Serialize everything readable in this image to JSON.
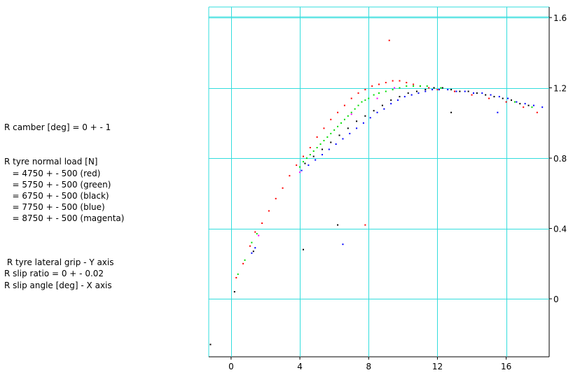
{
  "legend": {
    "camber": "R camber [deg] = 0 + - 1",
    "load_title": "R tyre normal load [N]",
    "load_lines": [
      "   = 4750 + - 500 (red)",
      "   = 5750 + - 500 (green)",
      "   = 6750 + - 500 (black)",
      "   = 7750 + - 500 (blue)",
      "   = 8750 + - 500 (magenta)"
    ],
    "y_axis": " R tyre lateral grip - Y axis",
    "slip_ratio": "R slip ratio = 0 + - 0.02",
    "x_axis": "R slip angle [deg] - X axis"
  },
  "chart_data": {
    "type": "scatter",
    "xlim": [
      -1.3,
      18.5
    ],
    "ylim": [
      -0.33,
      1.66
    ],
    "xticks": [
      0,
      4,
      8,
      12,
      16
    ],
    "yticks": [
      0,
      0.4,
      0.8,
      1.2,
      1.6
    ],
    "xtick_labels": [
      "0",
      "4",
      "8",
      "12",
      "16"
    ],
    "ytick_labels": [
      "0",
      "0.4",
      "0.8",
      "1.2",
      "1.6"
    ],
    "grid": true,
    "y_tick_side": "right",
    "grid_color": "#33dddd",
    "series": [
      {
        "color": "#ff0000",
        "points": [
          [
            0.3,
            0.12
          ],
          [
            0.7,
            0.2
          ],
          [
            1.1,
            0.3
          ],
          [
            1.4,
            0.38
          ],
          [
            1.8,
            0.43
          ],
          [
            2.2,
            0.5
          ],
          [
            2.6,
            0.57
          ],
          [
            3.0,
            0.63
          ],
          [
            3.4,
            0.7
          ],
          [
            3.8,
            0.76
          ],
          [
            4.2,
            0.81
          ],
          [
            4.6,
            0.86
          ],
          [
            5.0,
            0.92
          ],
          [
            5.4,
            0.97
          ],
          [
            5.8,
            1.02
          ],
          [
            6.2,
            1.06
          ],
          [
            6.6,
            1.1
          ],
          [
            7.0,
            1.14
          ],
          [
            7.4,
            1.17
          ],
          [
            7.8,
            1.19
          ],
          [
            8.2,
            1.21
          ],
          [
            8.6,
            1.22
          ],
          [
            9.0,
            1.23
          ],
          [
            9.4,
            1.24
          ],
          [
            9.8,
            1.24
          ],
          [
            10.2,
            1.23
          ],
          [
            10.6,
            1.22
          ],
          [
            11.0,
            1.21
          ],
          [
            11.5,
            1.2
          ],
          [
            12.0,
            1.19
          ],
          [
            13.0,
            1.18
          ],
          [
            14.0,
            1.16
          ],
          [
            15.0,
            1.14
          ],
          [
            16.0,
            1.12
          ],
          [
            17.0,
            1.09
          ],
          [
            17.8,
            1.06
          ],
          [
            7.8,
            0.42
          ],
          [
            9.2,
            1.47
          ]
        ]
      },
      {
        "color": "#00dd00",
        "points": [
          [
            0.4,
            0.14
          ],
          [
            0.8,
            0.22
          ],
          [
            1.2,
            0.32
          ],
          [
            1.5,
            0.37
          ],
          [
            4.0,
            0.75
          ],
          [
            4.2,
            0.78
          ],
          [
            4.4,
            0.8
          ],
          [
            4.6,
            0.82
          ],
          [
            4.8,
            0.84
          ],
          [
            5.0,
            0.86
          ],
          [
            5.2,
            0.88
          ],
          [
            5.4,
            0.9
          ],
          [
            5.6,
            0.92
          ],
          [
            5.8,
            0.94
          ],
          [
            6.0,
            0.96
          ],
          [
            6.2,
            0.98
          ],
          [
            6.4,
            1.0
          ],
          [
            6.6,
            1.02
          ],
          [
            6.8,
            1.04
          ],
          [
            7.0,
            1.06
          ],
          [
            7.2,
            1.08
          ],
          [
            7.4,
            1.1
          ],
          [
            7.6,
            1.12
          ],
          [
            7.8,
            1.13
          ],
          [
            8.0,
            1.14
          ],
          [
            8.3,
            1.16
          ],
          [
            8.6,
            1.17
          ],
          [
            9.0,
            1.18
          ],
          [
            9.4,
            1.19
          ],
          [
            9.8,
            1.2
          ],
          [
            10.2,
            1.21
          ],
          [
            10.6,
            1.21
          ],
          [
            11.0,
            1.21
          ],
          [
            11.4,
            1.21
          ],
          [
            11.8,
            1.2
          ],
          [
            12.2,
            1.2
          ],
          [
            12.8,
            1.19
          ],
          [
            16.5,
            1.12
          ],
          [
            17.5,
            1.09
          ]
        ]
      },
      {
        "color": "#000000",
        "points": [
          [
            0.2,
            0.04
          ],
          [
            1.3,
            0.27
          ],
          [
            4.3,
            0.77
          ],
          [
            4.8,
            0.81
          ],
          [
            5.3,
            0.85
          ],
          [
            5.8,
            0.89
          ],
          [
            6.3,
            0.93
          ],
          [
            6.8,
            0.97
          ],
          [
            7.3,
            1.01
          ],
          [
            7.8,
            1.04
          ],
          [
            8.3,
            1.07
          ],
          [
            8.8,
            1.1
          ],
          [
            9.3,
            1.13
          ],
          [
            9.8,
            1.15
          ],
          [
            10.3,
            1.17
          ],
          [
            10.8,
            1.18
          ],
          [
            11.3,
            1.19
          ],
          [
            11.8,
            1.2
          ],
          [
            12.3,
            1.2
          ],
          [
            12.8,
            1.19
          ],
          [
            13.3,
            1.18
          ],
          [
            13.8,
            1.18
          ],
          [
            14.3,
            1.17
          ],
          [
            14.8,
            1.16
          ],
          [
            15.3,
            1.15
          ],
          [
            15.8,
            1.14
          ],
          [
            16.3,
            1.13
          ],
          [
            16.8,
            1.11
          ],
          [
            17.3,
            1.1
          ],
          [
            12.8,
            1.06
          ],
          [
            6.2,
            0.42
          ],
          [
            4.2,
            0.28
          ],
          [
            -1.2,
            -0.26
          ]
        ]
      },
      {
        "color": "#0000ff",
        "points": [
          [
            1.2,
            0.26
          ],
          [
            1.4,
            0.29
          ],
          [
            4.1,
            0.73
          ],
          [
            4.5,
            0.76
          ],
          [
            4.9,
            0.79
          ],
          [
            5.3,
            0.82
          ],
          [
            5.7,
            0.85
          ],
          [
            6.1,
            0.88
          ],
          [
            6.5,
            0.91
          ],
          [
            6.9,
            0.94
          ],
          [
            7.3,
            0.97
          ],
          [
            7.7,
            1.0
          ],
          [
            8.1,
            1.03
          ],
          [
            8.5,
            1.06
          ],
          [
            8.9,
            1.08
          ],
          [
            9.3,
            1.11
          ],
          [
            9.7,
            1.13
          ],
          [
            10.1,
            1.15
          ],
          [
            10.5,
            1.16
          ],
          [
            10.9,
            1.17
          ],
          [
            11.3,
            1.18
          ],
          [
            11.7,
            1.19
          ],
          [
            12.1,
            1.19
          ],
          [
            12.6,
            1.19
          ],
          [
            13.1,
            1.18
          ],
          [
            13.6,
            1.18
          ],
          [
            14.1,
            1.17
          ],
          [
            14.6,
            1.17
          ],
          [
            15.1,
            1.16
          ],
          [
            15.6,
            1.15
          ],
          [
            16.1,
            1.14
          ],
          [
            16.6,
            1.12
          ],
          [
            17.1,
            1.11
          ],
          [
            17.6,
            1.1
          ],
          [
            18.1,
            1.09
          ],
          [
            15.5,
            1.06
          ],
          [
            6.5,
            0.31
          ]
        ]
      },
      {
        "color": "#ff00ff",
        "points": [
          [
            1.6,
            0.36
          ],
          [
            4.0,
            0.72
          ],
          [
            7.0,
            1.05
          ],
          [
            8.5,
            1.14
          ],
          [
            9.5,
            1.2
          ]
        ]
      }
    ]
  }
}
